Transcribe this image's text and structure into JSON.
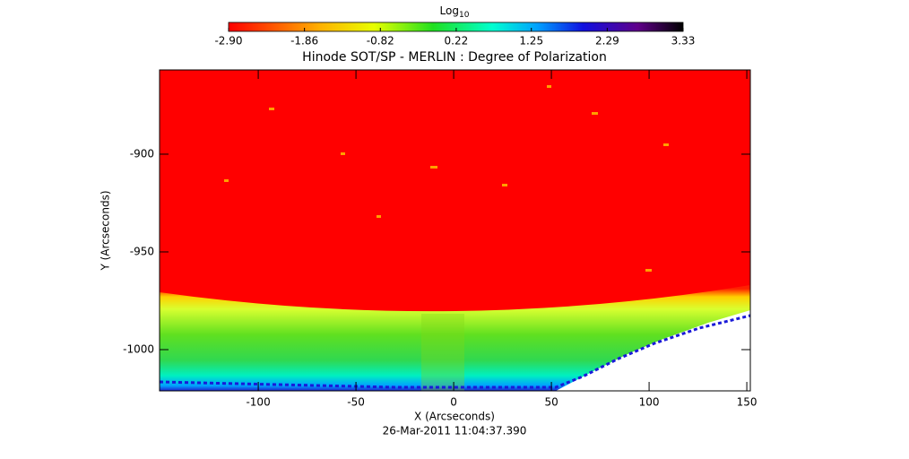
{
  "chart_data": {
    "type": "image",
    "title": "Hinode SOT/SP - MERLIN : Degree of Polarization",
    "x_label": "X (Arcseconds)",
    "y_label": "Y (Arcseconds)",
    "footer": "26-Mar-2011 11:04:37.390",
    "colorbar": {
      "label": "Log",
      "label_subscript": "10",
      "lim": [
        -2.9,
        3.33
      ],
      "ticks": [
        {
          "value": -2.9,
          "label": "-2.90"
        },
        -1.86,
        -0.82,
        0.22,
        1.25,
        2.29,
        3.33
      ]
    },
    "xlim": [
      -150.5,
      151.8
    ],
    "xticks": [
      -100,
      -50,
      0,
      50,
      100,
      150
    ],
    "ylim": [
      -1021.1,
      -856.9
    ],
    "yticks": [
      -900,
      -950,
      -1000
    ]
  }
}
